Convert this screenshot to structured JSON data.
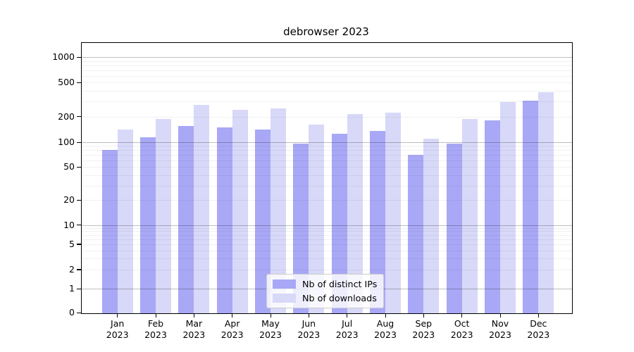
{
  "title": "debrowser 2023",
  "chart_data": {
    "type": "bar",
    "title": "debrowser 2023",
    "categories": [
      "Jan",
      "Feb",
      "Mar",
      "Apr",
      "May",
      "Jun",
      "Jul",
      "Aug",
      "Sep",
      "Oct",
      "Nov",
      "Dec"
    ],
    "category_year": "2023",
    "series": [
      {
        "name": "Nb of distinct IPs",
        "color": "#a8a8f6",
        "values": [
          80,
          115,
          154,
          148,
          141,
          96,
          125,
          135,
          71,
          96,
          180,
          305
        ]
      },
      {
        "name": "Nb of downloads",
        "color": "#d8d8f8",
        "values": [
          141,
          188,
          274,
          238,
          247,
          160,
          215,
          221,
          110,
          188,
          294,
          383
        ]
      }
    ],
    "yscale": "log above 1, linear between 0 and 1 (symlog-like)",
    "yticks": [
      1000,
      500,
      200,
      100,
      50,
      20,
      10,
      5,
      2,
      1,
      0
    ],
    "ylim": [
      0,
      1460
    ],
    "grid": "horizontal major and minor gridlines",
    "legend_position": "lower center inside plot",
    "axis_color": "#000000",
    "major_grid_color": "#bdbdbd",
    "minor_grid_color": "#ebebeb"
  }
}
